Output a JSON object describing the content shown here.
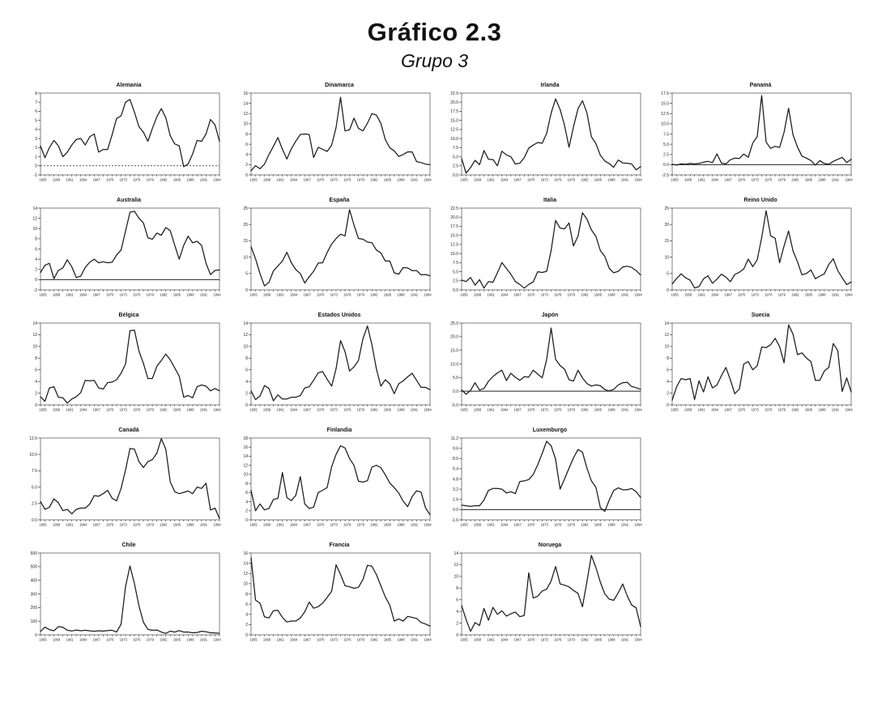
{
  "page": {
    "title": "Gráfico 2.3",
    "subtitle": "Grupo 3"
  },
  "x_tick_labels": [
    "1955",
    "1958",
    "1961",
    "1964",
    "1967",
    "1970",
    "1973",
    "1976",
    "1979",
    "1982",
    "1985",
    "1988",
    "1991",
    "1994"
  ],
  "chart_data": [
    {
      "type": "line",
      "title": "Alemania",
      "ylim": [
        -1,
        8
      ],
      "yticks": [
        "8",
        "7",
        "6",
        "5",
        "4",
        "3",
        "2",
        "1",
        "0",
        "-1"
      ],
      "zero_line": "dashed",
      "values": [
        2.2,
        0.9,
        2.0,
        2.8,
        2.2,
        1.0,
        1.5,
        2.3,
        2.9,
        3.0,
        2.3,
        3.2,
        3.5,
        1.5,
        1.8,
        1.8,
        3.4,
        5.2,
        5.5,
        7.0,
        7.3,
        5.9,
        4.3,
        3.7,
        2.7,
        4.1,
        5.4,
        6.3,
        5.3,
        3.3,
        2.4,
        2.2,
        -0.1,
        0.2,
        1.3,
        2.8,
        2.7,
        3.5,
        5.1,
        4.5,
        2.7
      ]
    },
    {
      "type": "line",
      "title": "Dinamarca",
      "ylim": [
        0,
        16
      ],
      "yticks": [
        "16",
        "14",
        "12",
        "10",
        "8",
        "6",
        "4",
        "2",
        "0"
      ],
      "zero_line": null,
      "values": [
        0.8,
        1.8,
        1.2,
        2.1,
        4.0,
        5.6,
        7.3,
        5.0,
        3.1,
        5.1,
        6.6,
        7.9,
        8.0,
        7.9,
        3.4,
        5.4,
        5.0,
        4.6,
        5.8,
        9.3,
        15.2,
        8.6,
        8.8,
        11.1,
        9.1,
        8.6,
        10.1,
        12.0,
        11.7,
        10.1,
        6.9,
        5.3,
        4.7,
        3.6,
        4.0,
        4.5,
        4.5,
        2.6,
        2.4,
        2.1,
        2.0
      ]
    },
    {
      "type": "line",
      "title": "Irlanda",
      "ylim": [
        0,
        22.5
      ],
      "yticks": [
        "22.5",
        "20.0",
        "17.5",
        "15.0",
        "12.5",
        "10.0",
        "7.5",
        "5.0",
        "2.5",
        "0.0"
      ],
      "zero_line": null,
      "values": [
        4.5,
        0.5,
        2.0,
        4.0,
        2.8,
        6.7,
        4.3,
        4.2,
        2.5,
        6.5,
        5.5,
        5.0,
        3.0,
        3.2,
        4.7,
        7.4,
        8.2,
        8.9,
        8.7,
        11.4,
        17.0,
        20.9,
        18.0,
        13.6,
        7.6,
        13.2,
        18.2,
        20.4,
        17.1,
        10.5,
        8.6,
        5.4,
        3.8,
        3.1,
        2.1,
        4.1,
        3.3,
        3.2,
        3.0,
        1.4,
        2.3
      ]
    },
    {
      "type": "line",
      "title": "Panamá",
      "ylim": [
        -2.5,
        17.5
      ],
      "yticks": [
        "17.5",
        "15.0",
        "12.5",
        "10.0",
        "7.5",
        "5.0",
        "2.5",
        "0.0",
        "-2.5"
      ],
      "zero_line": "solid",
      "values": [
        0.1,
        -0.1,
        0.2,
        0.1,
        0.3,
        0.2,
        0.3,
        0.6,
        0.8,
        0.5,
        2.6,
        0.4,
        0.2,
        1.2,
        1.6,
        1.5,
        2.6,
        1.8,
        5.3,
        6.9,
        16.9,
        5.5,
        4.0,
        4.5,
        4.2,
        7.9,
        13.8,
        7.3,
        4.3,
        2.1,
        1.6,
        1.0,
        -0.1,
        1.0,
        0.3,
        0.1,
        0.8,
        1.3,
        1.8,
        0.5,
        1.3
      ]
    },
    {
      "type": "line",
      "title": "Australia",
      "ylim": [
        -2,
        14
      ],
      "yticks": [
        "14",
        "12",
        "10",
        "8",
        "6",
        "4",
        "2",
        "0",
        "-2"
      ],
      "zero_line": "solid",
      "values": [
        1.4,
        2.8,
        3.2,
        0.2,
        1.8,
        2.3,
        3.9,
        2.5,
        0.4,
        0.7,
        2.4,
        3.4,
        4.0,
        3.3,
        3.5,
        3.3,
        3.4,
        4.8,
        5.8,
        9.5,
        13.2,
        13.4,
        12.0,
        11.1,
        8.2,
        7.9,
        9.1,
        8.7,
        10.2,
        9.6,
        6.7,
        4.0,
        6.7,
        8.5,
        7.2,
        7.5,
        6.7,
        3.2,
        1.0,
        1.8,
        1.9
      ]
    },
    {
      "type": "line",
      "title": "España",
      "ylim": [
        0,
        25
      ],
      "yticks": [
        "25",
        "20",
        "15",
        "10",
        "5",
        "0"
      ],
      "zero_line": null,
      "values": [
        13.2,
        9.5,
        5.0,
        1.2,
        2.3,
        5.8,
        7.3,
        8.8,
        11.5,
        8.3,
        6.2,
        5.0,
        2.1,
        4.0,
        5.7,
        8.2,
        8.3,
        11.4,
        14.0,
        15.7,
        17.0,
        16.5,
        24.5,
        19.8,
        15.7,
        15.5,
        14.6,
        14.4,
        12.2,
        11.3,
        8.8,
        8.8,
        5.2,
        4.8,
        6.8,
        6.7,
        5.9,
        5.9,
        4.6,
        4.7,
        4.3
      ]
    },
    {
      "type": "line",
      "title": "Italia",
      "ylim": [
        0,
        22.5
      ],
      "yticks": [
        "22.5",
        "20.0",
        "17.5",
        "15.0",
        "12.5",
        "10.0",
        "7.5",
        "5.0",
        "2.5",
        "0.0"
      ],
      "zero_line": null,
      "values": [
        2.7,
        2.3,
        3.4,
        1.3,
        2.8,
        0.5,
        2.3,
        2.1,
        4.7,
        7.5,
        5.9,
        4.3,
        2.3,
        1.5,
        0.5,
        1.5,
        2.2,
        5.0,
        4.8,
        5.1,
        10.8,
        19.1,
        17.0,
        16.8,
        18.4,
        12.1,
        14.8,
        21.2,
        19.5,
        16.5,
        14.7,
        10.8,
        9.2,
        5.9,
        4.7,
        5.1,
        6.3,
        6.5,
        6.2,
        5.3,
        4.1
      ]
    },
    {
      "type": "line",
      "title": "Reino Unido",
      "ylim": [
        0,
        25
      ],
      "yticks": [
        "25",
        "20",
        "15",
        "10",
        "5",
        "0"
      ],
      "zero_line": null,
      "values": [
        1.8,
        3.5,
        4.9,
        3.7,
        3.0,
        0.6,
        1.0,
        3.4,
        4.3,
        2.0,
        3.3,
        4.8,
        3.9,
        2.5,
        4.7,
        5.4,
        6.4,
        9.4,
        7.1,
        9.2,
        16.0,
        24.2,
        16.5,
        15.8,
        8.3,
        13.4,
        18.0,
        11.9,
        8.6,
        4.6,
        5.0,
        6.1,
        3.4,
        4.2,
        4.9,
        7.8,
        9.5,
        5.9,
        3.7,
        1.6,
        2.4
      ]
    },
    {
      "type": "line",
      "title": "Bélgica",
      "ylim": [
        0,
        14
      ],
      "yticks": [
        "14",
        "12",
        "10",
        "8",
        "6",
        "4",
        "2",
        "0"
      ],
      "zero_line": null,
      "values": [
        1.4,
        0.6,
        2.9,
        3.1,
        1.3,
        1.2,
        0.3,
        1.0,
        1.4,
        2.1,
        4.2,
        4.1,
        4.2,
        2.9,
        2.7,
        3.8,
        3.9,
        4.3,
        5.4,
        7.0,
        12.7,
        12.8,
        9.2,
        7.1,
        4.5,
        4.5,
        6.6,
        7.6,
        8.7,
        7.7,
        6.3,
        4.9,
        1.3,
        1.6,
        1.2,
        3.1,
        3.4,
        3.2,
        2.4,
        2.8,
        2.4
      ]
    },
    {
      "type": "line",
      "title": "Estados Unidos",
      "ylim": [
        0,
        14
      ],
      "yticks": [
        "14",
        "12",
        "10",
        "8",
        "6",
        "4",
        "2",
        "0"
      ],
      "zero_line": null,
      "values": [
        2.4,
        0.9,
        1.5,
        3.3,
        2.8,
        0.7,
        1.7,
        1.0,
        1.0,
        1.3,
        1.3,
        1.6,
        2.9,
        3.1,
        4.2,
        5.5,
        5.7,
        4.4,
        3.2,
        6.2,
        11.0,
        9.1,
        5.8,
        6.5,
        7.6,
        11.3,
        13.5,
        10.3,
        6.2,
        3.2,
        4.3,
        3.6,
        1.9,
        3.6,
        4.1,
        4.8,
        5.4,
        4.2,
        3.0,
        3.0,
        2.6
      ]
    },
    {
      "type": "line",
      "title": "Japón",
      "ylim": [
        -5,
        25
      ],
      "yticks": [
        "25.0",
        "20.0",
        "15.0",
        "10.0",
        "5.0",
        "0.0",
        "-5.0"
      ],
      "zero_line": "solid",
      "values": [
        0.5,
        -1.1,
        0.3,
        3.1,
        0.4,
        1.0,
        3.6,
        5.4,
        6.7,
        7.7,
        3.9,
        6.6,
        5.1,
        4.0,
        5.3,
        5.2,
        7.7,
        6.3,
        4.9,
        11.7,
        23.2,
        11.7,
        9.4,
        8.1,
        4.2,
        3.7,
        7.7,
        4.9,
        2.8,
        1.9,
        2.3,
        2.0,
        0.6,
        0.1,
        0.7,
        2.3,
        3.1,
        3.3,
        1.7,
        1.3,
        0.7
      ]
    },
    {
      "type": "line",
      "title": "Suecia",
      "ylim": [
        0,
        14
      ],
      "yticks": [
        "14",
        "12",
        "10",
        "8",
        "6",
        "4",
        "2",
        "0"
      ],
      "zero_line": null,
      "values": [
        0.8,
        3.1,
        4.5,
        4.3,
        4.5,
        0.9,
        4.1,
        2.2,
        4.8,
        2.9,
        3.4,
        5.0,
        6.4,
        4.3,
        1.9,
        2.7,
        7.0,
        7.4,
        6.0,
        6.7,
        9.9,
        9.8,
        10.3,
        11.4,
        10.0,
        7.2,
        13.7,
        12.1,
        8.6,
        8.9,
        8.0,
        7.4,
        4.2,
        4.2,
        5.8,
        6.4,
        10.5,
        9.3,
        2.3,
        4.6,
        2.2
      ]
    },
    {
      "type": "line",
      "title": "Canadá",
      "ylim": [
        0,
        12.5
      ],
      "yticks": [
        "12.5",
        "10.0",
        "7.5",
        "5.0",
        "2.5",
        "0.0"
      ],
      "zero_line": null,
      "values": [
        2.8,
        1.6,
        1.9,
        3.2,
        2.6,
        1.4,
        1.6,
        0.9,
        1.6,
        1.8,
        1.8,
        2.4,
        3.7,
        3.6,
        4.0,
        4.5,
        3.3,
        2.9,
        4.8,
        7.6,
        10.9,
        10.8,
        8.9,
        8.0,
        8.9,
        9.2,
        10.2,
        12.4,
        10.8,
        5.8,
        4.3,
        4.0,
        4.2,
        4.4,
        4.0,
        5.0,
        4.8,
        5.6,
        1.5,
        1.8,
        0.2
      ]
    },
    {
      "type": "line",
      "title": "Finlandia",
      "ylim": [
        0,
        18
      ],
      "yticks": [
        "18",
        "16",
        "14",
        "12",
        "10",
        "8",
        "6",
        "4",
        "2",
        "0"
      ],
      "zero_line": null,
      "values": [
        6.5,
        2.0,
        3.5,
        2.2,
        2.5,
        4.5,
        4.7,
        10.4,
        4.9,
        4.2,
        5.4,
        9.5,
        3.5,
        2.5,
        2.8,
        6.0,
        6.5,
        7.1,
        11.7,
        14.4,
        16.3,
        15.8,
        13.5,
        12.0,
        8.5,
        8.3,
        8.6,
        11.6,
        12.0,
        11.5,
        9.9,
        8.1,
        7.1,
        5.9,
        4.1,
        2.9,
        5.1,
        6.4,
        6.1,
        2.6,
        1.1
      ]
    },
    {
      "type": "line",
      "title": "Luxemburgo",
      "ylim": [
        -1.6,
        11.2
      ],
      "yticks": [
        "11.2",
        "9.6",
        "8.0",
        "6.4",
        "4.8",
        "3.2",
        "1.6",
        "0.0",
        "-1.6"
      ],
      "zero_line": "solid",
      "values": [
        0.7,
        0.6,
        0.5,
        0.6,
        0.6,
        1.5,
        3.0,
        3.3,
        3.3,
        3.2,
        2.6,
        2.8,
        2.5,
        4.4,
        4.5,
        4.7,
        5.5,
        7.0,
        8.8,
        10.7,
        10.0,
        7.9,
        3.2,
        4.8,
        6.5,
        8.1,
        9.4,
        9.0,
        6.5,
        4.5,
        3.5,
        0.3,
        -0.3,
        1.5,
        3.0,
        3.4,
        3.1,
        3.1,
        3.3,
        2.8,
        1.9
      ]
    },
    {
      "type": "line",
      "title": "Chile",
      "ylim": [
        0,
        600
      ],
      "yticks": [
        "600",
        "500",
        "400",
        "300",
        "200",
        "100",
        "0"
      ],
      "zero_line": null,
      "values": [
        25,
        56,
        38,
        30,
        60,
        55,
        33,
        28,
        35,
        30,
        33,
        29,
        26,
        30,
        27,
        31,
        33,
        20,
        78,
        353,
        505,
        375,
        212,
        92,
        40,
        33,
        35,
        20,
        10,
        27,
        20,
        31,
        20,
        20,
        15,
        17,
        26,
        22,
        15,
        13,
        11
      ]
    },
    {
      "type": "line",
      "title": "Francia",
      "ylim": [
        0,
        16
      ],
      "yticks": [
        "16",
        "14",
        "12",
        "10",
        "8",
        "6",
        "4",
        "2",
        "0"
      ],
      "zero_line": null,
      "values": [
        15.1,
        6.8,
        6.2,
        3.5,
        3.3,
        4.7,
        4.8,
        3.4,
        2.5,
        2.7,
        2.7,
        3.3,
        4.5,
        6.4,
        5.2,
        5.5,
        6.2,
        7.3,
        8.5,
        13.7,
        11.8,
        9.6,
        9.4,
        9.1,
        9.3,
        10.8,
        13.6,
        13.4,
        11.8,
        9.6,
        7.4,
        5.8,
        2.7,
        3.1,
        2.7,
        3.6,
        3.4,
        3.2,
        2.4,
        2.1,
        1.7
      ]
    },
    {
      "type": "line",
      "title": "Noruega",
      "ylim": [
        0,
        14
      ],
      "yticks": [
        "14",
        "12",
        "10",
        "8",
        "6",
        "4",
        "2",
        "0"
      ],
      "zero_line": null,
      "values": [
        5.0,
        2.6,
        0.6,
        2.1,
        1.6,
        4.5,
        2.5,
        4.7,
        3.5,
        4.1,
        3.2,
        3.6,
        3.9,
        3.1,
        3.3,
        10.6,
        6.3,
        6.6,
        7.5,
        7.8,
        9.2,
        11.7,
        8.7,
        8.5,
        8.2,
        7.6,
        7.1,
        4.8,
        9.1,
        13.6,
        11.5,
        9.0,
        7.0,
        6.1,
        5.9,
        7.2,
        8.7,
        6.7,
        5.1,
        4.6,
        1.4
      ]
    }
  ]
}
